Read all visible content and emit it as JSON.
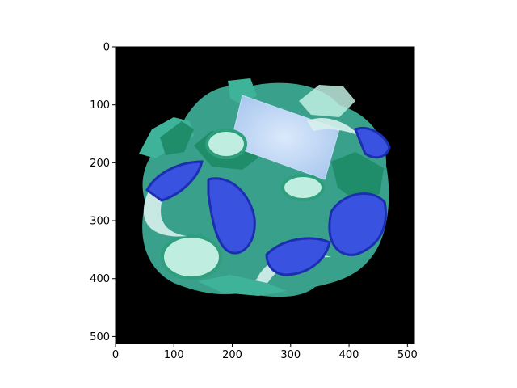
{
  "chart_data": {
    "type": "image",
    "image_content": "salad (cucumber slices, tomato wedges, onion rings, lettuce, green pepper, feta cube) rendered with swapped color channels on a black background",
    "xlim": [
      0,
      512
    ],
    "ylim": [
      512,
      0
    ],
    "y_axis_inverted": true,
    "x_ticks": [
      0,
      100,
      200,
      300,
      400,
      500
    ],
    "y_ticks": [
      0,
      100,
      200,
      300,
      400,
      500
    ],
    "title": "",
    "xlabel": "",
    "ylabel": "",
    "grid": false,
    "colors": {
      "background": "#000000",
      "lettuce": "#3fb39a",
      "pepper": "#1f8c6a",
      "cucumber_skin": "#2e9e7d",
      "cucumber_flesh": "#bfeee0",
      "onion": "#d8f0ec",
      "tomato": "#3a52e0",
      "tomato_dark": "#1c2fb0",
      "feta": "#c8dcf5",
      "axis": "#000000"
    }
  }
}
